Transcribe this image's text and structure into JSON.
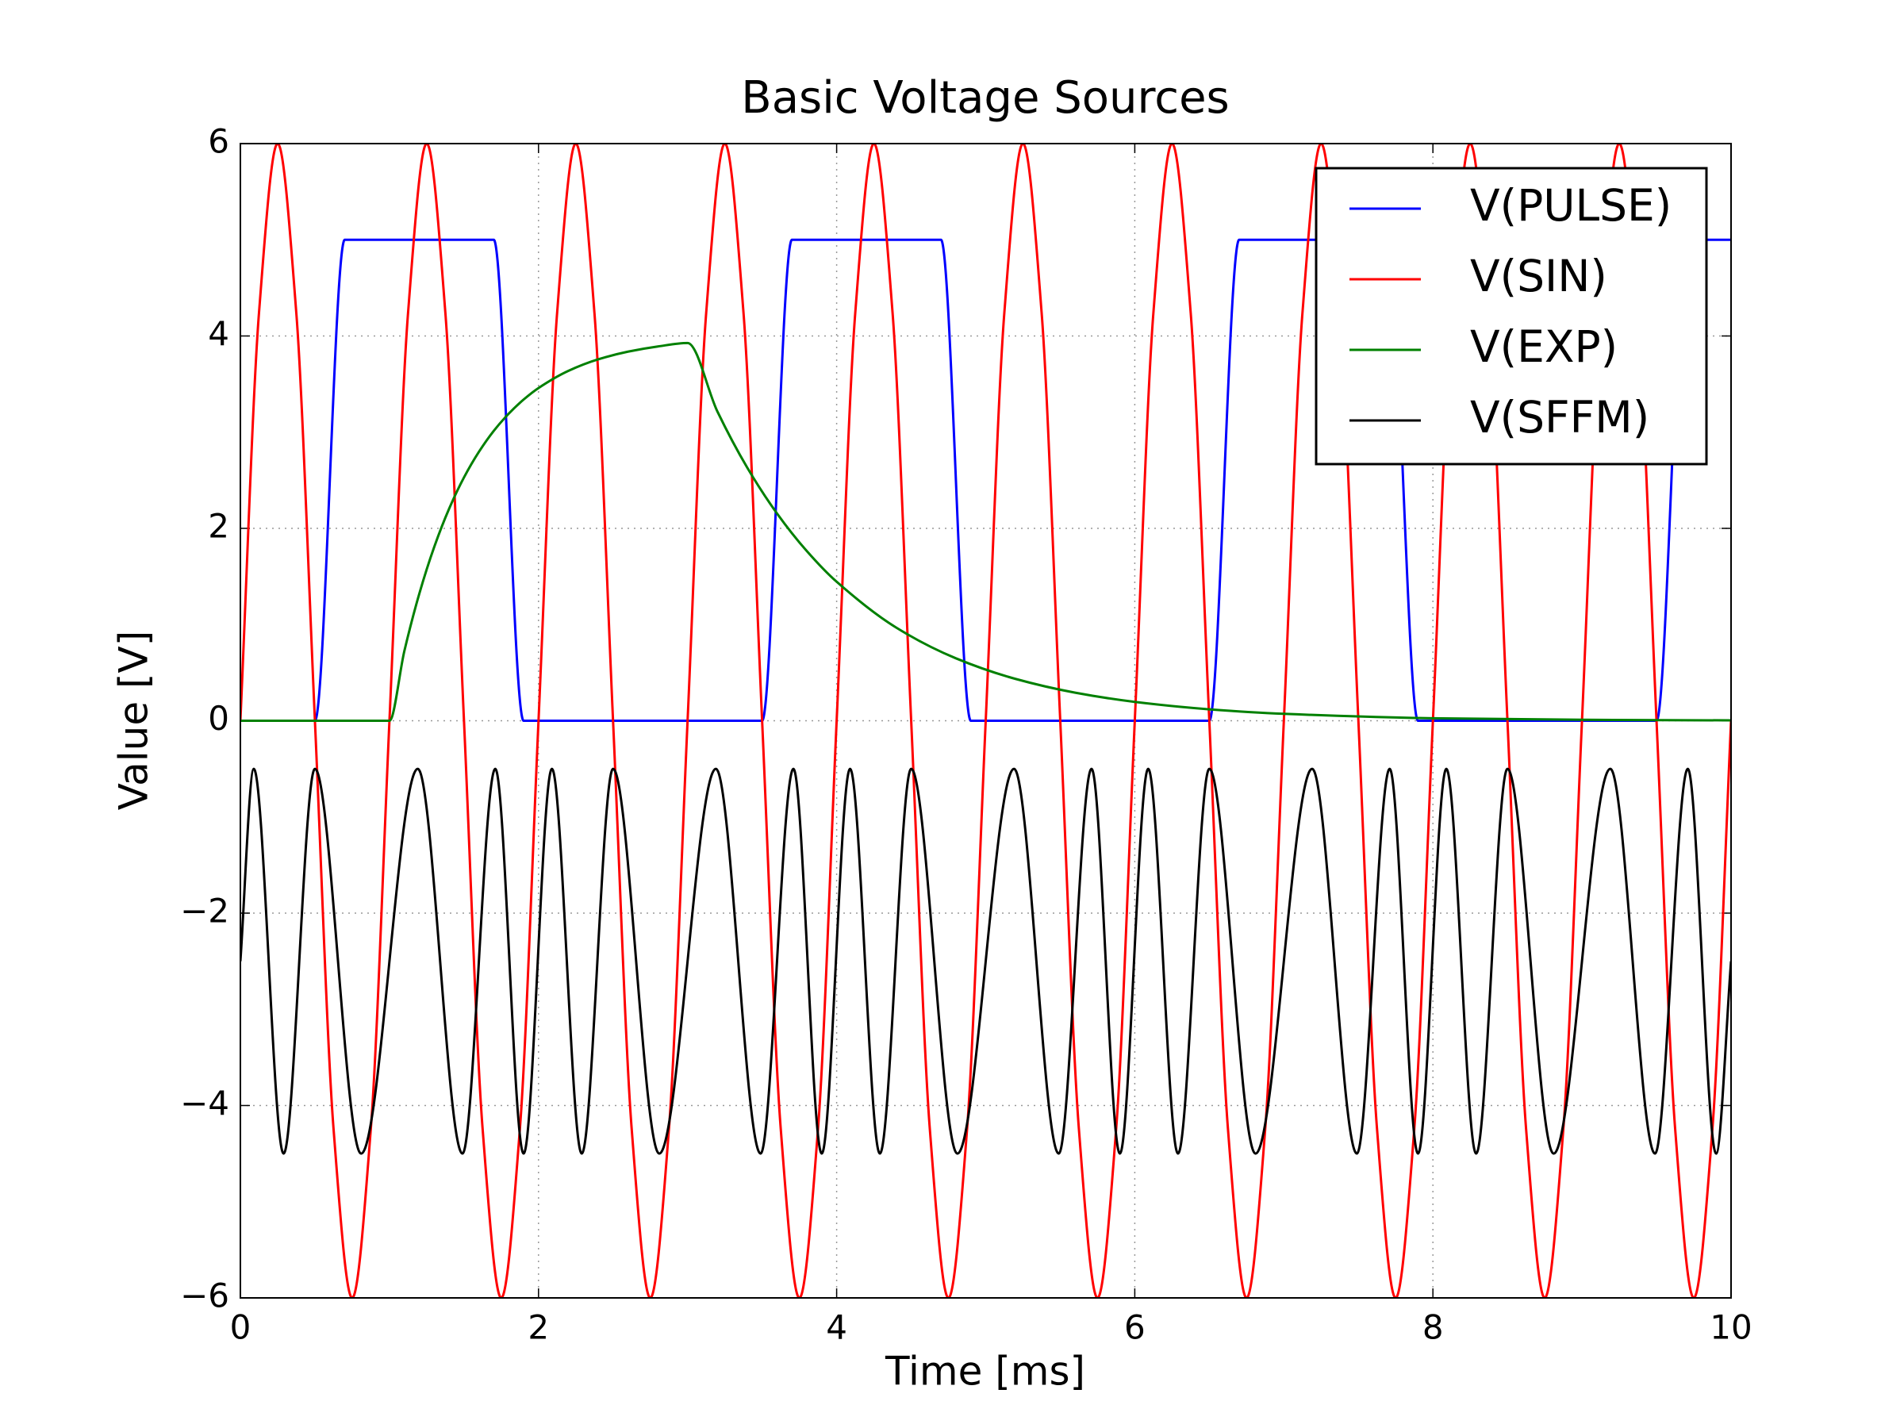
{
  "chart_data": {
    "type": "line",
    "title": "Basic Voltage Sources",
    "xlabel": "Time [ms]",
    "ylabel": "Value [V]",
    "xlim": [
      0,
      10
    ],
    "ylim": [
      -6,
      6
    ],
    "xticks": [
      0,
      2,
      4,
      6,
      8,
      10
    ],
    "yticks": [
      {
        "value": -6,
        "label": "−6"
      },
      {
        "value": -4,
        "label": "−4"
      },
      {
        "value": -2,
        "label": "−2"
      },
      0,
      2,
      4,
      6
    ],
    "grid": true,
    "legend": "upper right",
    "series": [
      {
        "name": "V(PULSE)",
        "color": "#0000ff",
        "x": [
          0,
          0.5,
          0.7,
          1.7,
          1.9,
          3.5,
          3.7,
          4.7,
          4.9,
          6.5,
          6.7,
          7.7,
          7.9,
          9.5,
          9.7,
          10
        ],
        "values": [
          0,
          0,
          5,
          5,
          0,
          0,
          5,
          5,
          0,
          0,
          5,
          5,
          0,
          0,
          5,
          5
        ]
      },
      {
        "name": "V(SIN)",
        "color": "#ff0000",
        "x": [
          0,
          0.125,
          0.25,
          0.375,
          0.5,
          0.625,
          0.75,
          0.875,
          1,
          1.125,
          1.25,
          1.375,
          1.5,
          1.625,
          1.75,
          1.875,
          2,
          2.125,
          2.25,
          2.375,
          2.5,
          2.625,
          2.75,
          2.875,
          3,
          3.125,
          3.25,
          3.375,
          3.5,
          3.625,
          3.75,
          3.875,
          4,
          4.125,
          4.25,
          4.375,
          4.5,
          4.625,
          4.75,
          4.875,
          5,
          5.125,
          5.25,
          5.375,
          5.5,
          5.625,
          5.75,
          5.875,
          6,
          6.125,
          6.25,
          6.375,
          6.5,
          6.625,
          6.75,
          6.875,
          7,
          7.125,
          7.25,
          7.375,
          7.5,
          7.625,
          7.75,
          7.875,
          8,
          8.125,
          8.25,
          8.375,
          8.5,
          8.625,
          8.75,
          8.875,
          9,
          9.125,
          9.25,
          9.375,
          9.5,
          9.625,
          9.75,
          9.875,
          10
        ],
        "values": [
          0,
          4.243,
          6,
          4.243,
          0,
          -4.243,
          -6,
          -4.243,
          0,
          4.243,
          6,
          4.243,
          0,
          -4.243,
          -6,
          -4.243,
          0,
          4.243,
          6,
          4.243,
          0,
          -4.243,
          -6,
          -4.243,
          0,
          4.243,
          6,
          4.243,
          0,
          -4.243,
          -6,
          -4.243,
          0,
          4.243,
          6,
          4.243,
          0,
          -4.243,
          -6,
          -4.243,
          0,
          4.243,
          6,
          4.243,
          0,
          -4.243,
          -6,
          -4.243,
          0,
          4.243,
          6,
          4.243,
          0,
          -4.243,
          -6,
          -4.243,
          0,
          4.243,
          6,
          4.243,
          0,
          -4.243,
          -6,
          -4.243,
          0,
          4.243,
          6,
          4.243,
          0,
          -4.243,
          -6,
          -4.243,
          0,
          4.243,
          6,
          4.243,
          0,
          -4.243,
          -6,
          -4.243,
          0
        ]
      },
      {
        "name": "V(EXP)",
        "color": "#008000",
        "x": [
          0,
          1,
          1.1,
          1.2,
          1.3,
          1.4,
          1.5,
          1.6,
          1.7,
          1.8,
          1.9,
          2.0,
          2.2,
          2.4,
          2.6,
          2.8,
          3.0,
          3.2,
          3.4,
          3.6,
          3.8,
          4.0,
          4.4,
          4.8,
          5.2,
          5.6,
          6.0,
          6.5,
          7,
          8,
          9,
          10
        ],
        "values": [
          0,
          0,
          0.725,
          1.319,
          1.805,
          2.203,
          2.529,
          2.795,
          3.014,
          3.192,
          3.339,
          3.459,
          3.637,
          3.757,
          3.837,
          3.891,
          3.927,
          3.215,
          2.632,
          2.155,
          1.764,
          1.445,
          0.968,
          0.649,
          0.435,
          0.292,
          0.196,
          0.119,
          0.072,
          0.026,
          0.01,
          0.004
        ]
      },
      {
        "name": "V(SFFM)",
        "color": "#000000",
        "x": [
          0,
          0.09,
          0.29,
          0.5,
          0.81,
          1.19,
          1.49,
          1.71,
          1.9,
          2.09,
          2.29,
          2.5,
          2.81,
          3.19,
          3.49,
          3.71,
          3.9,
          4.09,
          4.29,
          4.5,
          4.81,
          5.19,
          5.49,
          5.71,
          5.9,
          6.09,
          6.29,
          6.5,
          6.81,
          7.19,
          7.49,
          7.71,
          7.9,
          8.09,
          8.29,
          8.5,
          8.81,
          9.19,
          9.49,
          9.71,
          9.9,
          10
        ],
        "values": [
          -2.5,
          -0.5,
          -4.5,
          -0.5,
          -4.5,
          -0.5,
          -4.5,
          -0.5,
          -4.5,
          -0.5,
          -4.5,
          -0.5,
          -4.5,
          -0.5,
          -4.5,
          -0.5,
          -4.5,
          -0.5,
          -4.5,
          -0.5,
          -4.5,
          -0.5,
          -4.5,
          -0.5,
          -4.5,
          -0.5,
          -4.5,
          -0.5,
          -4.5,
          -0.5,
          -4.5,
          -0.5,
          -4.5,
          -0.5,
          -4.5,
          -0.5,
          -4.5,
          -0.5,
          -4.5,
          -0.5,
          -4.5,
          -2.5
        ]
      }
    ]
  }
}
